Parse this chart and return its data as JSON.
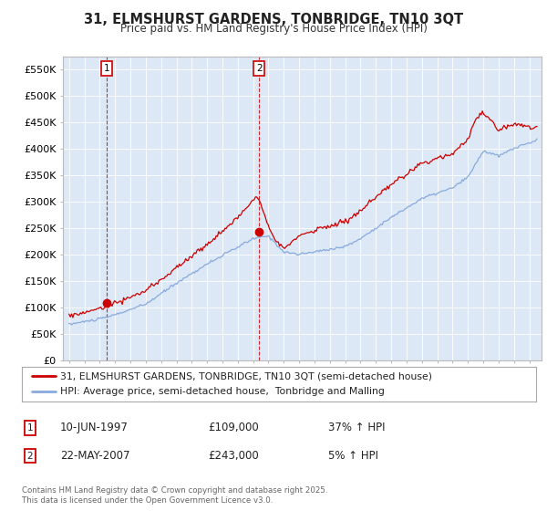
{
  "title": "31, ELMSHURST GARDENS, TONBRIDGE, TN10 3QT",
  "subtitle": "Price paid vs. HM Land Registry's House Price Index (HPI)",
  "legend_line1": "31, ELMSHURST GARDENS, TONBRIDGE, TN10 3QT (semi-detached house)",
  "legend_line2": "HPI: Average price, semi-detached house,  Tonbridge and Malling",
  "annotation1_date": "10-JUN-1997",
  "annotation1_price": "£109,000",
  "annotation1_hpi": "37% ↑ HPI",
  "annotation2_date": "22-MAY-2007",
  "annotation2_price": "£243,000",
  "annotation2_hpi": "5% ↑ HPI",
  "footer": "Contains HM Land Registry data © Crown copyright and database right 2025.\nThis data is licensed under the Open Government Licence v3.0.",
  "house_color": "#cc0000",
  "hpi_color": "#88aadd",
  "fig_bg": "#ffffff",
  "plot_bg": "#dce8f5",
  "grid_color": "#ffffff",
  "vline_color": "#cc0000",
  "ylim": [
    0,
    575000
  ],
  "yticks": [
    0,
    50000,
    100000,
    150000,
    200000,
    250000,
    300000,
    350000,
    400000,
    450000,
    500000,
    550000
  ],
  "xlim_left": 1994.6,
  "xlim_right": 2025.8,
  "sale1_x": 1997.44,
  "sale1_y": 109000,
  "sale2_x": 2007.39,
  "sale2_y": 243000
}
